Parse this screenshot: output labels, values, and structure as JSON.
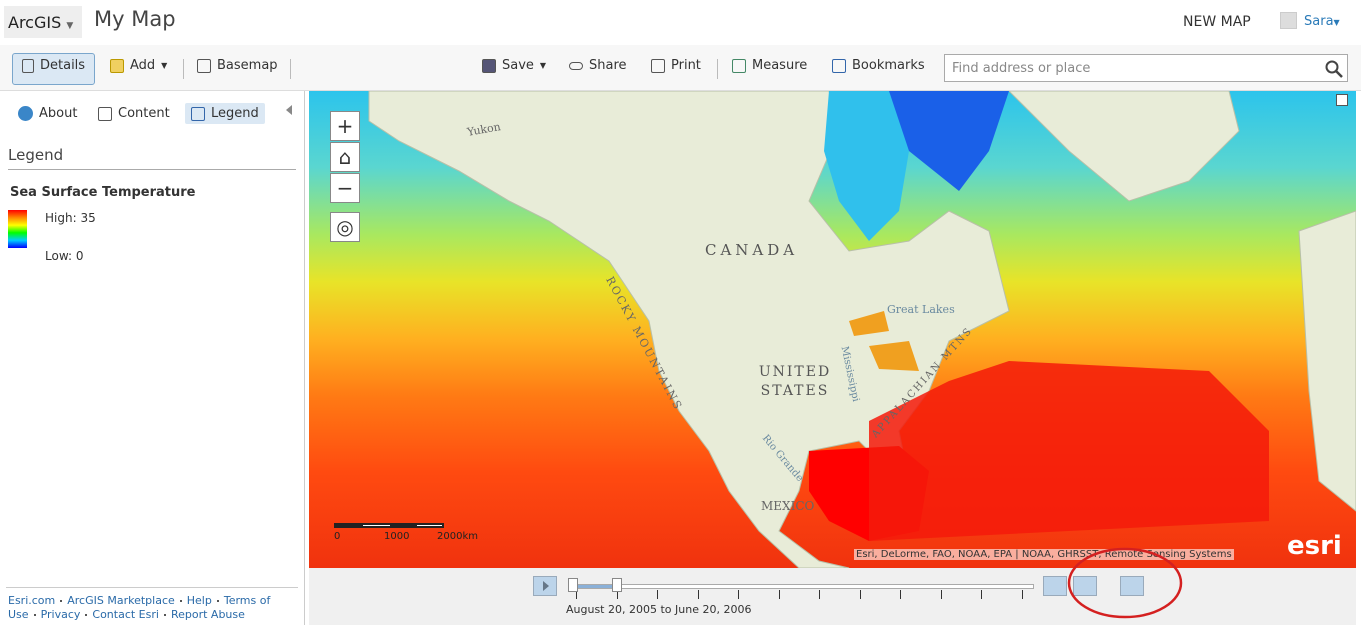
{
  "header": {
    "logo": "ArcGIS",
    "title": "My Map",
    "new_map": "NEW MAP",
    "user": "Sara"
  },
  "toolbar": {
    "details": "Details",
    "add": "Add",
    "basemap": "Basemap",
    "save": "Save",
    "share": "Share",
    "print": "Print",
    "measure": "Measure",
    "bookmarks": "Bookmarks",
    "search_placeholder": "Find address or place"
  },
  "sidebar": {
    "tabs": [
      "About",
      "Content",
      "Legend"
    ],
    "heading": "Legend",
    "layer": "Sea Surface Temperature",
    "high": "High: 35",
    "low": "Low: 0",
    "footer_links": [
      "Esri.com",
      "ArcGIS Marketplace",
      "Help",
      "Terms of Use",
      "Privacy",
      "Contact Esri",
      "Report Abuse"
    ]
  },
  "map": {
    "labels": {
      "yukon": "Yukon",
      "canada": "CANADA",
      "rocky": "ROCKY MOUNTAINS",
      "great_lakes": "Great Lakes",
      "mississippi": "Mississippi",
      "united_states": "UNITED STATES",
      "appalachian": "APPALACHIAN MTNS",
      "rio_grande": "Rio Grande",
      "mexico": "MEXICO"
    },
    "scale_labels": [
      "0",
      "1000",
      "2000km"
    ],
    "attribution": "Esri, DeLorme, FAO, NOAA, EPA | NOAA, GHRSST, Remote Sensing Systems",
    "logo": "esri"
  },
  "time_slider": {
    "range": "August 20, 2005 to June 20, 2006"
  }
}
